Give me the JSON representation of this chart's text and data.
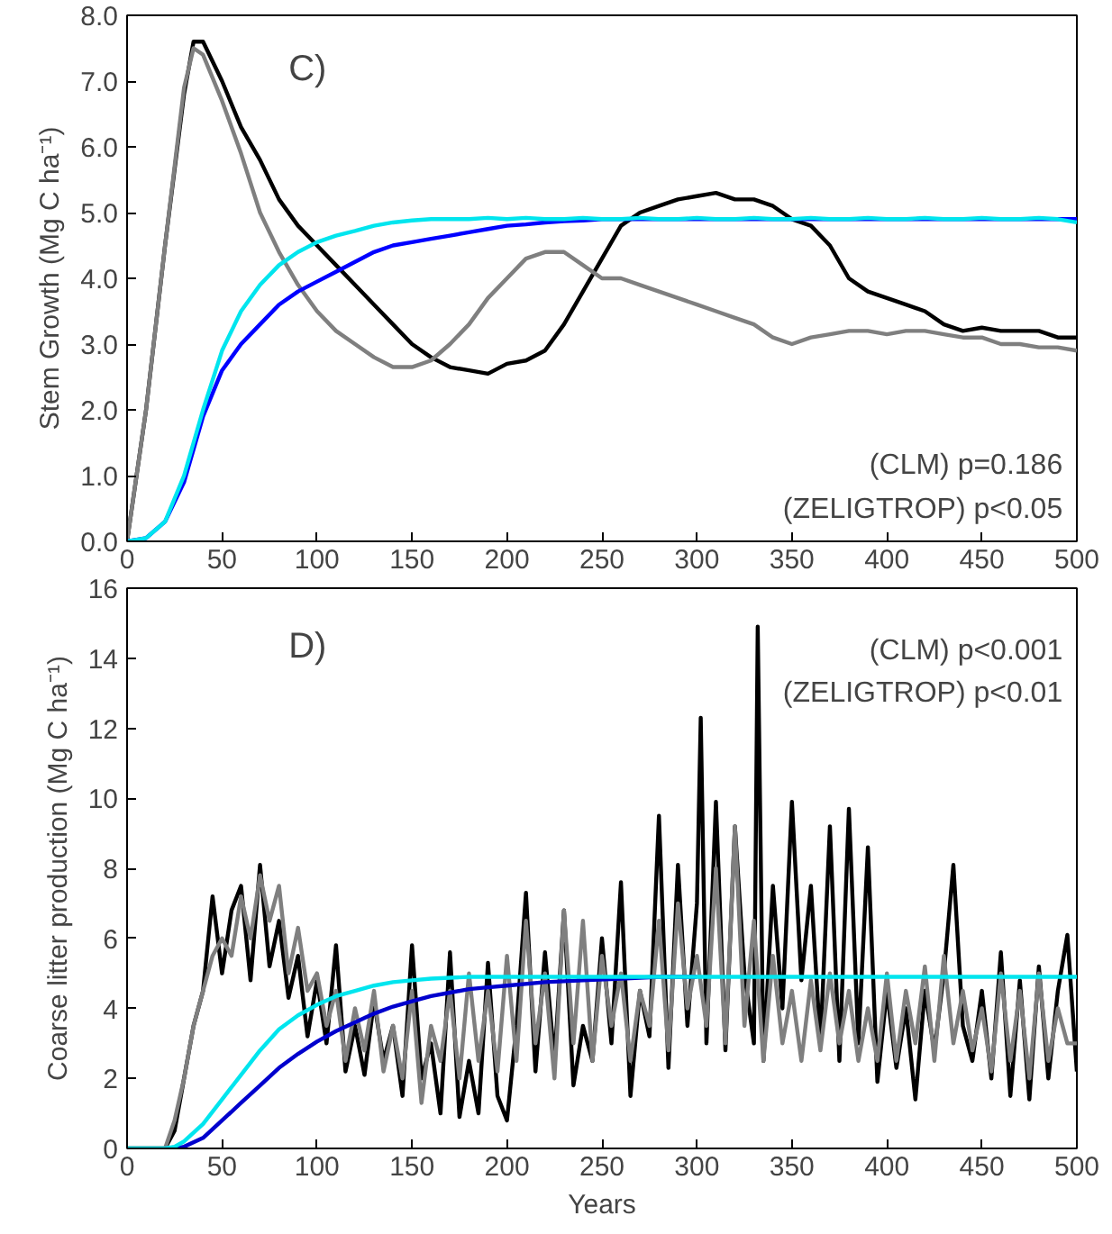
{
  "chart_data": [
    {
      "type": "line",
      "ylabel": "Stem Growth (Mg C ha⁻¹)",
      "annotations": [
        "C)",
        "(CLM) p=0.186",
        "(ZELIGTROP) p<0.05"
      ],
      "x": [
        0,
        10,
        20,
        30,
        35,
        40,
        50,
        60,
        70,
        80,
        90,
        100,
        110,
        120,
        130,
        140,
        150,
        160,
        170,
        180,
        190,
        200,
        210,
        220,
        230,
        240,
        250,
        260,
        270,
        280,
        290,
        300,
        310,
        320,
        330,
        340,
        350,
        360,
        370,
        380,
        390,
        400,
        410,
        420,
        430,
        440,
        450,
        460,
        470,
        480,
        490,
        500
      ],
      "series": [
        {
          "color": "#000000",
          "values": [
            0,
            2.0,
            4.5,
            6.8,
            7.6,
            7.6,
            7.0,
            6.3,
            5.8,
            5.2,
            4.8,
            4.5,
            4.2,
            3.9,
            3.6,
            3.3,
            3.0,
            2.8,
            2.65,
            2.6,
            2.55,
            2.7,
            2.75,
            2.9,
            3.3,
            3.8,
            4.3,
            4.8,
            5.0,
            5.1,
            5.2,
            5.25,
            5.3,
            5.2,
            5.2,
            5.1,
            4.9,
            4.8,
            4.5,
            4.0,
            3.8,
            3.7,
            3.6,
            3.5,
            3.3,
            3.2,
            3.25,
            3.2,
            3.2,
            3.2,
            3.1,
            3.1
          ]
        },
        {
          "color": "#7f7f7f",
          "values": [
            0,
            2.0,
            4.5,
            6.9,
            7.5,
            7.4,
            6.7,
            5.9,
            5.0,
            4.4,
            3.9,
            3.5,
            3.2,
            3.0,
            2.8,
            2.65,
            2.65,
            2.75,
            3.0,
            3.3,
            3.7,
            4.0,
            4.3,
            4.4,
            4.4,
            4.2,
            4.0,
            4.0,
            3.9,
            3.8,
            3.7,
            3.6,
            3.5,
            3.4,
            3.3,
            3.1,
            3.0,
            3.1,
            3.15,
            3.2,
            3.2,
            3.15,
            3.2,
            3.2,
            3.15,
            3.1,
            3.1,
            3.0,
            3.0,
            2.95,
            2.95,
            2.9
          ]
        },
        {
          "color": "#0000ff",
          "values": [
            0,
            0.05,
            0.3,
            0.9,
            1.4,
            1.9,
            2.6,
            3.0,
            3.3,
            3.6,
            3.8,
            3.95,
            4.1,
            4.25,
            4.4,
            4.5,
            4.55,
            4.6,
            4.65,
            4.7,
            4.75,
            4.8,
            4.82,
            4.85,
            4.87,
            4.88,
            4.9,
            4.9,
            4.9,
            4.9,
            4.9,
            4.9,
            4.9,
            4.9,
            4.9,
            4.9,
            4.9,
            4.9,
            4.9,
            4.9,
            4.9,
            4.9,
            4.9,
            4.9,
            4.9,
            4.9,
            4.9,
            4.9,
            4.9,
            4.9,
            4.9,
            4.9
          ]
        },
        {
          "color": "#00e5ee",
          "values": [
            0,
            0.05,
            0.3,
            1.0,
            1.5,
            2.0,
            2.9,
            3.5,
            3.9,
            4.2,
            4.4,
            4.55,
            4.65,
            4.72,
            4.8,
            4.85,
            4.88,
            4.9,
            4.9,
            4.9,
            4.92,
            4.9,
            4.92,
            4.9,
            4.9,
            4.92,
            4.9,
            4.9,
            4.92,
            4.9,
            4.9,
            4.92,
            4.9,
            4.9,
            4.92,
            4.9,
            4.9,
            4.92,
            4.9,
            4.9,
            4.92,
            4.9,
            4.9,
            4.92,
            4.9,
            4.9,
            4.92,
            4.9,
            4.9,
            4.92,
            4.9,
            4.85
          ]
        }
      ],
      "xlim": [
        0,
        500
      ],
      "xticks": [
        0,
        50,
        100,
        150,
        200,
        250,
        300,
        350,
        400,
        450,
        500
      ],
      "ylim": [
        0,
        8
      ],
      "yticks": [
        {
          "value": 0,
          "label": "0.0"
        },
        {
          "value": 1,
          "label": "1.0"
        },
        {
          "value": 2,
          "label": "2.0"
        },
        {
          "value": 3,
          "label": "3.0"
        },
        {
          "value": 4,
          "label": "4.0"
        },
        {
          "value": 5,
          "label": "5.0"
        },
        {
          "value": 6,
          "label": "6.0"
        },
        {
          "value": 7,
          "label": "7.0"
        },
        {
          "value": 8,
          "label": "8.0"
        }
      ],
      "grid": false
    },
    {
      "type": "line",
      "xlabel": "Years",
      "ylabel": "Coarse litter production (Mg C ha⁻¹)",
      "annotations": [
        "D)",
        "(CLM) p<0.001",
        "(ZELIGTROP) p<0.01"
      ],
      "series": [
        {
          "color": "#000000",
          "x": [
            0,
            5,
            10,
            15,
            20,
            25,
            30,
            35,
            40,
            45,
            50,
            55,
            60,
            65,
            70,
            75,
            80,
            85,
            90,
            95,
            100,
            105,
            110,
            115,
            120,
            125,
            130,
            135,
            140,
            145,
            150,
            155,
            160,
            165,
            170,
            175,
            180,
            185,
            190,
            195,
            200,
            205,
            210,
            215,
            220,
            225,
            230,
            235,
            240,
            245,
            250,
            255,
            260,
            265,
            270,
            275,
            280,
            285,
            290,
            295,
            300,
            302,
            305,
            310,
            315,
            320,
            325,
            330,
            332,
            335,
            340,
            345,
            350,
            355,
            360,
            365,
            370,
            375,
            380,
            385,
            390,
            395,
            400,
            405,
            410,
            415,
            420,
            425,
            430,
            435,
            440,
            445,
            450,
            455,
            460,
            465,
            470,
            475,
            480,
            485,
            490,
            495,
            500
          ],
          "values": [
            0,
            0,
            0,
            0,
            0,
            0.5,
            2,
            3.5,
            4.5,
            7.2,
            5,
            6.8,
            7.5,
            4.8,
            8.1,
            5.2,
            6.5,
            4.3,
            5.5,
            3.2,
            4.8,
            3.0,
            5.8,
            2.2,
            3.5,
            2.1,
            4.2,
            2.5,
            3.5,
            1.5,
            5.8,
            2.0,
            3.0,
            1.0,
            5.6,
            0.9,
            2.5,
            1.0,
            5.3,
            1.5,
            0.8,
            3.5,
            7.3,
            2.2,
            5.6,
            2.5,
            6.8,
            1.8,
            3.5,
            2.5,
            6.0,
            3.0,
            7.6,
            1.5,
            4.5,
            3.2,
            9.5,
            2.3,
            8.1,
            3.5,
            7.0,
            12.3,
            3.0,
            9.9,
            2.8,
            9.2,
            5.0,
            3.0,
            14.9,
            2.5,
            7.5,
            4.0,
            9.9,
            4.8,
            7.5,
            3.0,
            9.2,
            2.5,
            9.7,
            3.0,
            8.6,
            1.9,
            4.5,
            2.3,
            4.0,
            1.4,
            4.5,
            2.8,
            5.0,
            8.1,
            3.5,
            2.5,
            4.5,
            2.0,
            5.6,
            1.5,
            4.8,
            1.4,
            5.2,
            2.0,
            4.5,
            6.1,
            2.2
          ]
        },
        {
          "color": "#7f7f7f",
          "x": [
            0,
            5,
            10,
            15,
            20,
            25,
            30,
            35,
            40,
            45,
            50,
            55,
            60,
            65,
            70,
            75,
            80,
            85,
            90,
            95,
            100,
            105,
            110,
            115,
            120,
            125,
            130,
            135,
            140,
            145,
            150,
            155,
            160,
            165,
            170,
            175,
            180,
            185,
            190,
            195,
            200,
            205,
            210,
            215,
            220,
            225,
            230,
            235,
            240,
            245,
            250,
            255,
            260,
            265,
            270,
            275,
            280,
            285,
            290,
            295,
            300,
            305,
            310,
            315,
            320,
            325,
            330,
            335,
            340,
            345,
            350,
            355,
            360,
            365,
            370,
            375,
            380,
            385,
            390,
            395,
            400,
            405,
            410,
            415,
            420,
            425,
            430,
            435,
            440,
            445,
            450,
            455,
            460,
            465,
            470,
            475,
            480,
            485,
            490,
            495,
            500
          ],
          "values": [
            0,
            0,
            0,
            0,
            0,
            0.8,
            2,
            3.5,
            4.5,
            5.5,
            6,
            5.5,
            7.2,
            6,
            7.8,
            6.5,
            7.5,
            5.0,
            6.3,
            4.5,
            5.0,
            3.5,
            4.5,
            2.5,
            4.0,
            2.8,
            4.5,
            2.2,
            3.5,
            2.0,
            4.5,
            1.3,
            3.5,
            2.5,
            4.5,
            2.0,
            5.0,
            2.5,
            4.5,
            2.2,
            5.5,
            2.5,
            6.5,
            3.0,
            5.0,
            2.0,
            6.8,
            3.0,
            6.5,
            2.5,
            5.5,
            3.5,
            5.0,
            2.5,
            4.5,
            3.5,
            6.5,
            2.8,
            7.0,
            4.0,
            5.5,
            3.5,
            8.0,
            3.0,
            9.2,
            3.5,
            6.5,
            2.5,
            5.5,
            3.0,
            4.5,
            2.5,
            4.8,
            2.8,
            5.0,
            3.0,
            4.5,
            2.5,
            4.0,
            2.5,
            5.0,
            2.5,
            4.5,
            3.0,
            5.2,
            2.5,
            5.5,
            3.0,
            4.5,
            2.8,
            4.0,
            2.2,
            5.0,
            2.5,
            4.5,
            2.0,
            5.0,
            2.5,
            4.0,
            3.0,
            3.0
          ]
        },
        {
          "color": "#0000cd",
          "x": [
            20,
            25,
            30,
            40,
            50,
            60,
            70,
            80,
            90,
            100,
            110,
            120,
            130,
            140,
            150,
            160,
            170,
            180,
            190,
            200,
            220,
            240,
            260,
            280,
            300
          ],
          "values": [
            0,
            0,
            0.05,
            0.3,
            0.8,
            1.3,
            1.8,
            2.3,
            2.7,
            3.05,
            3.35,
            3.6,
            3.85,
            4.05,
            4.2,
            4.35,
            4.45,
            4.55,
            4.6,
            4.65,
            4.75,
            4.8,
            4.85,
            4.9,
            4.9
          ]
        },
        {
          "color": "#00e5ee",
          "x": [
            0,
            10,
            20,
            25,
            30,
            40,
            50,
            60,
            70,
            80,
            90,
            100,
            110,
            120,
            130,
            140,
            150,
            160,
            180,
            200,
            250,
            300,
            350,
            400,
            450,
            500
          ],
          "values": [
            0,
            0,
            0,
            0.05,
            0.2,
            0.7,
            1.4,
            2.1,
            2.8,
            3.4,
            3.8,
            4.1,
            4.35,
            4.5,
            4.65,
            4.75,
            4.8,
            4.85,
            4.9,
            4.9,
            4.9,
            4.9,
            4.9,
            4.9,
            4.9,
            4.9
          ]
        }
      ],
      "xlim": [
        0,
        500
      ],
      "xticks": [
        0,
        50,
        100,
        150,
        200,
        250,
        300,
        350,
        400,
        450,
        500
      ],
      "ylim": [
        0,
        16
      ],
      "yticks": [
        0,
        2,
        4,
        6,
        8,
        10,
        12,
        14,
        16
      ],
      "grid": false
    }
  ]
}
